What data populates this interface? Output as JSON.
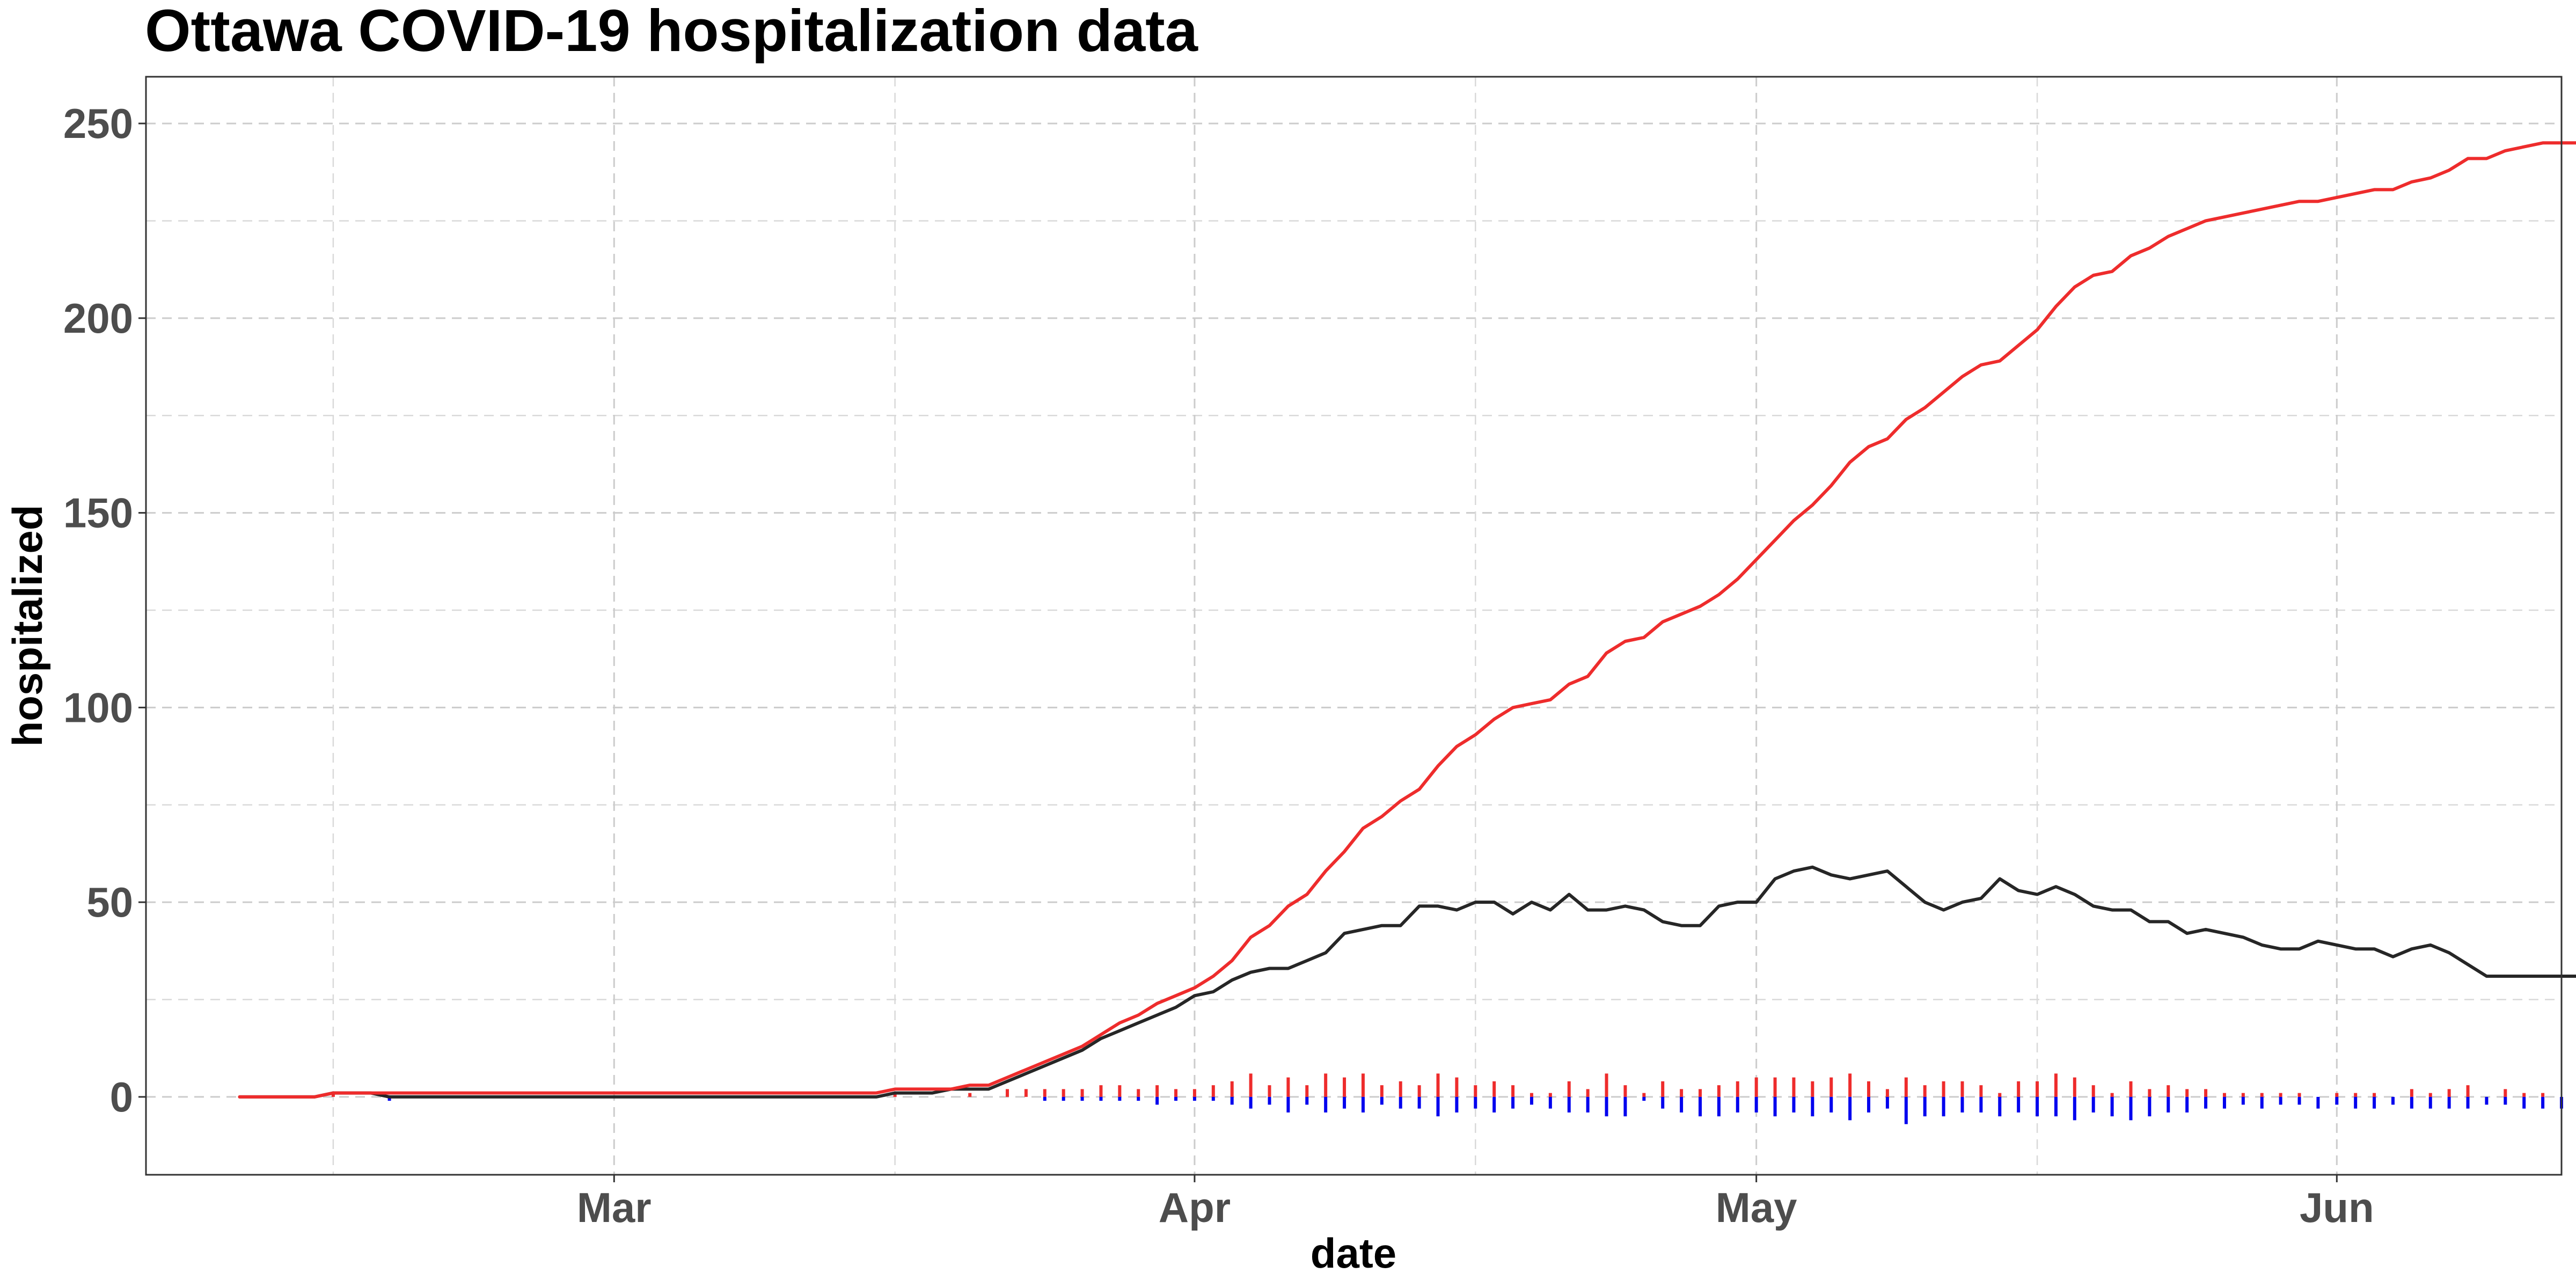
{
  "chart_data": {
    "type": "line",
    "title": "Ottawa COVID-19 hospitalization data",
    "xlabel": "date",
    "ylabel": "hospitalized",
    "x_start": "2020-02-10",
    "x_end": "2020-06-07",
    "xlim": [
      "2020-02-05",
      "2020-06-13"
    ],
    "ylim": [
      -20,
      262
    ],
    "x_ticks": [
      {
        "label": "Mar",
        "date": "2020-03-01"
      },
      {
        "label": "Apr",
        "date": "2020-04-01"
      },
      {
        "label": "May",
        "date": "2020-05-01"
      },
      {
        "label": "Jun",
        "date": "2020-06-01"
      }
    ],
    "x_minor_ticks": [
      "2020-02-15",
      "2020-03-16",
      "2020-04-16",
      "2020-05-16"
    ],
    "y_ticks": [
      0,
      50,
      100,
      150,
      200,
      250
    ],
    "y_minor_ticks": [
      25,
      75,
      125,
      175,
      225
    ],
    "grid": true,
    "series": [
      {
        "kind": "line",
        "color": "#ee2c2c",
        "values": [
          0,
          0,
          0,
          0,
          0,
          1,
          1,
          1,
          1,
          1,
          1,
          1,
          1,
          1,
          1,
          1,
          1,
          1,
          1,
          1,
          1,
          1,
          1,
          1,
          1,
          1,
          1,
          1,
          1,
          1,
          1,
          1,
          1,
          1,
          1,
          2,
          2,
          2,
          2,
          3,
          3,
          5,
          7,
          9,
          11,
          13,
          16,
          19,
          21,
          24,
          26,
          28,
          31,
          35,
          41,
          44,
          49,
          52,
          58,
          63,
          69,
          72,
          76,
          79,
          85,
          90,
          93,
          97,
          100,
          101,
          102,
          106,
          108,
          114,
          117,
          118,
          122,
          124,
          126,
          129,
          133,
          138,
          143,
          148,
          152,
          157,
          163,
          167,
          169,
          174,
          177,
          181,
          185,
          188,
          189,
          193,
          197,
          203,
          208,
          211,
          212,
          216,
          218,
          221,
          223,
          225,
          226,
          227,
          228,
          229,
          230,
          230,
          231,
          232,
          233,
          233,
          235,
          236,
          238,
          241,
          241,
          243,
          244,
          245,
          245,
          245,
          245,
          247,
          248,
          248,
          248,
          248
        ]
      },
      {
        "kind": "line",
        "color": "#262626",
        "values": [
          0,
          0,
          0,
          0,
          0,
          1,
          1,
          1,
          0,
          0,
          0,
          0,
          0,
          0,
          0,
          0,
          0,
          0,
          0,
          0,
          0,
          0,
          0,
          0,
          0,
          0,
          0,
          0,
          0,
          0,
          0,
          0,
          0,
          0,
          0,
          1,
          1,
          1,
          2,
          2,
          2,
          4,
          6,
          8,
          10,
          12,
          15,
          17,
          19,
          21,
          23,
          26,
          27,
          30,
          32,
          33,
          33,
          35,
          37,
          42,
          43,
          44,
          44,
          49,
          49,
          48,
          50,
          50,
          47,
          50,
          48,
          52,
          48,
          48,
          49,
          48,
          45,
          44,
          44,
          49,
          50,
          50,
          56,
          58,
          59,
          57,
          56,
          57,
          58,
          54,
          50,
          48,
          50,
          51,
          56,
          53,
          52,
          54,
          52,
          49,
          48,
          48,
          45,
          45,
          42,
          43,
          42,
          41,
          39,
          38,
          38,
          40,
          39,
          38,
          38,
          36,
          38,
          39,
          37,
          34,
          31,
          31,
          31,
          31,
          31,
          31,
          31,
          31,
          31,
          31,
          31,
          31
        ]
      },
      {
        "kind": "bar",
        "color": "#ee2c2c",
        "values": [
          0,
          0,
          0,
          0,
          0,
          1,
          0,
          0,
          0,
          0,
          0,
          0,
          0,
          0,
          0,
          0,
          0,
          0,
          0,
          0,
          0,
          0,
          0,
          0,
          0,
          0,
          0,
          0,
          0,
          0,
          0,
          0,
          0,
          0,
          0,
          1,
          0,
          0,
          0,
          1,
          0,
          2,
          2,
          2,
          2,
          2,
          3,
          3,
          2,
          3,
          2,
          2,
          3,
          4,
          6,
          3,
          5,
          3,
          6,
          5,
          6,
          3,
          4,
          3,
          6,
          5,
          3,
          4,
          3,
          1,
          1,
          4,
          2,
          6,
          3,
          1,
          4,
          2,
          2,
          3,
          4,
          5,
          5,
          5,
          4,
          5,
          6,
          4,
          2,
          5,
          3,
          4,
          4,
          3,
          1,
          4,
          4,
          6,
          5,
          3,
          1,
          4,
          2,
          3,
          2,
          2,
          1,
          1,
          1,
          1,
          1,
          0,
          1,
          1,
          1,
          0,
          2,
          1,
          2,
          3,
          0,
          2,
          1,
          1,
          0,
          0,
          0,
          2,
          1,
          0,
          0,
          0
        ]
      },
      {
        "kind": "bar",
        "color": "#0000ee",
        "values": [
          0,
          0,
          0,
          0,
          0,
          0,
          0,
          0,
          -1,
          0,
          0,
          0,
          0,
          0,
          0,
          0,
          0,
          0,
          0,
          0,
          0,
          0,
          0,
          0,
          0,
          0,
          0,
          0,
          0,
          0,
          0,
          0,
          0,
          0,
          0,
          0,
          0,
          0,
          0,
          0,
          0,
          0,
          0,
          -1,
          -1,
          -1,
          -1,
          -1,
          -1,
          -2,
          -1,
          -1,
          -1,
          -2,
          -3,
          -2,
          -4,
          -2,
          -4,
          -3,
          -4,
          -2,
          -3,
          -3,
          -5,
          -4,
          -3,
          -4,
          -3,
          -2,
          -3,
          -4,
          -4,
          -5,
          -5,
          -1,
          -3,
          -4,
          -5,
          -5,
          -4,
          -4,
          -5,
          -4,
          -5,
          -4,
          -6,
          -4,
          -3,
          -7,
          -5,
          -5,
          -4,
          -4,
          -5,
          -4,
          -5,
          -5,
          -6,
          -4,
          -5,
          -6,
          -5,
          -4,
          -4,
          -3,
          -3,
          -2,
          -3,
          -2,
          -2,
          -3,
          -2,
          -3,
          -3,
          -2,
          -3,
          -3,
          -3,
          -3,
          -2,
          -2,
          -3,
          -3,
          -3,
          -3,
          -2,
          -2,
          -1,
          -1,
          -1,
          -1
        ]
      }
    ]
  }
}
